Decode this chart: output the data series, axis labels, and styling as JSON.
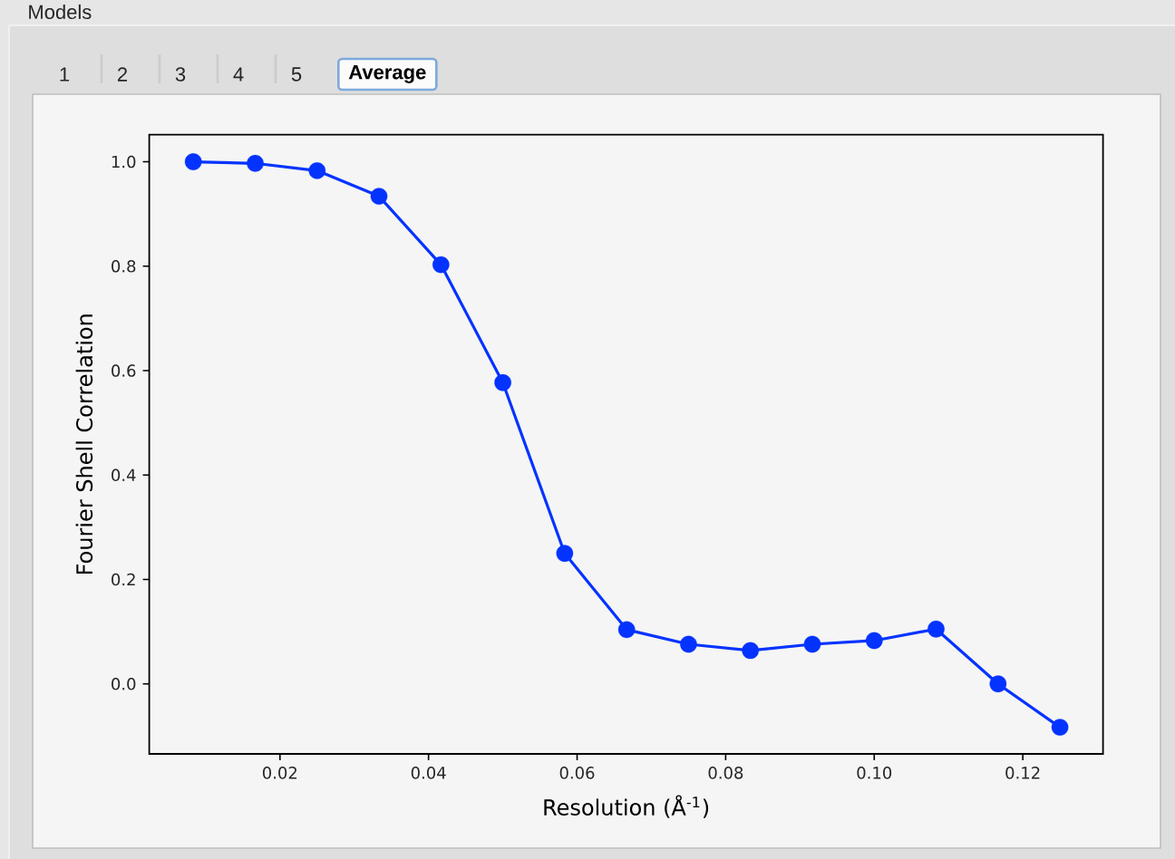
{
  "chart_data": {
    "type": "line",
    "title": "Models",
    "xlabel": "Resolution (Å$^{-1}$)",
    "ylabel": "Fourier Shell Correlation",
    "x": [
      0.00833,
      0.01667,
      0.025,
      0.03333,
      0.04167,
      0.05,
      0.05833,
      0.06667,
      0.075,
      0.08333,
      0.09167,
      0.1,
      0.10833,
      0.11667,
      0.125
    ],
    "series": [
      {
        "color": "#0433ff",
        "values": [
          1.0,
          0.997,
          0.983,
          0.934,
          0.803,
          0.577,
          0.25,
          0.104,
          0.076,
          0.064,
          0.076,
          0.083,
          0.105,
          0.0,
          -0.083
        ]
      }
    ],
    "xlim": [
      0.0024,
      0.1308
    ],
    "ylim": [
      -0.134,
      1.052
    ],
    "xticks": [
      0.02,
      0.04,
      0.06,
      0.08,
      {
        "value": 0.1,
        "label": "0.10"
      },
      0.12
    ],
    "yticks": [
      {
        "value": 0,
        "label": "0.0"
      },
      0.2,
      0.4,
      0.6,
      0.8,
      {
        "value": 1,
        "label": "1.0"
      }
    ],
    "marker": "circle",
    "line_style": "solid",
    "annotations": [
      "1",
      "2",
      "3",
      "4",
      "5",
      "Average"
    ]
  }
}
